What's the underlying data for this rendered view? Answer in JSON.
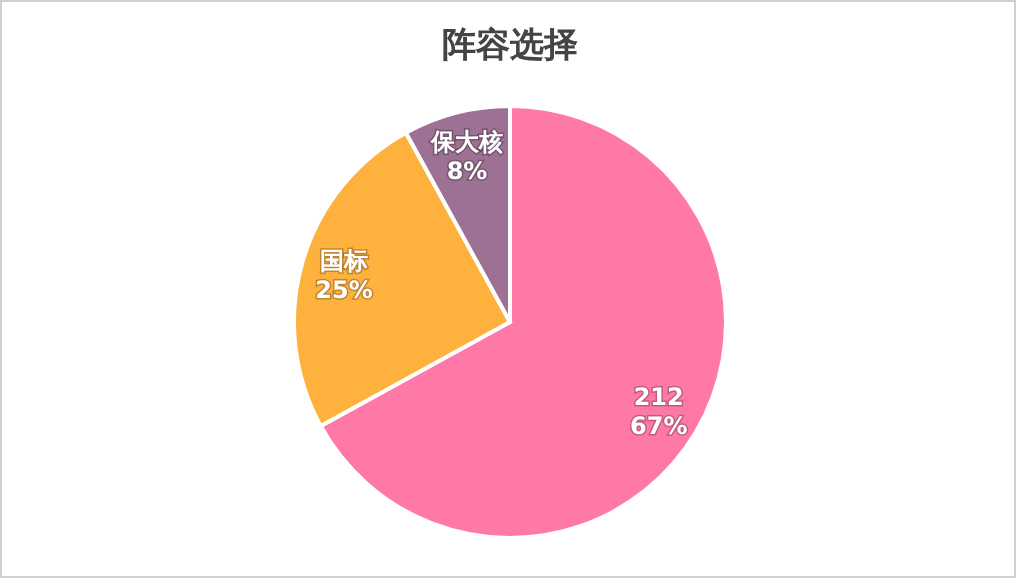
{
  "chart_data": {
    "type": "pie",
    "title": "阵容选择",
    "categories": [
      "212",
      "国标",
      "保大核"
    ],
    "values": [
      67,
      25,
      8
    ],
    "colors": [
      "#ff79a8",
      "#ffb13d",
      "#9c7193"
    ],
    "value_labels": [
      "67%",
      "25%",
      "8%"
    ],
    "legend": false
  }
}
